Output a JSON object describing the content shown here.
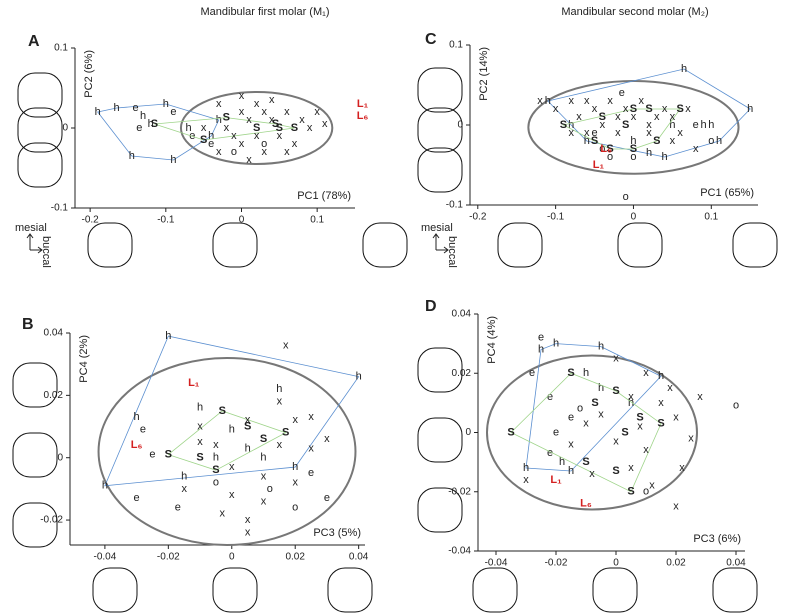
{
  "chart_data": [
    {
      "type": "scatter",
      "panel": "A",
      "title": "Mandibular first molar (M₁)",
      "xlabel": "PC1 (78%)",
      "ylabel": "PC2 (6%)",
      "xlim": [
        -0.22,
        0.15
      ],
      "ylim": [
        -0.1,
        0.1
      ],
      "xticks": [
        -0.2,
        -0.1,
        0,
        0.1
      ],
      "yticks": [
        -0.1,
        0,
        0.1
      ],
      "orientation": [
        "mesial",
        "buccal"
      ],
      "ellipse": {
        "center": [
          0.02,
          0
        ],
        "radii": [
          0.1,
          0.045
        ]
      },
      "series": [
        {
          "marker": "h",
          "color": "#1f3c88",
          "hull": "#5b8fd0",
          "x": [
            -0.19,
            -0.165,
            -0.13,
            -0.145,
            -0.1,
            -0.12,
            -0.07,
            -0.04,
            -0.03,
            -0.09
          ],
          "values": [
            0.02,
            0.025,
            0.015,
            -0.035,
            0.03,
            0.005,
            0.0,
            -0.01,
            0.01,
            -0.04
          ]
        },
        {
          "marker": "e",
          "color": "#1fa3d6",
          "x": [
            -0.14,
            -0.135,
            -0.09,
            -0.065,
            -0.04
          ],
          "values": [
            0.025,
            0.0,
            0.02,
            -0.01,
            -0.02
          ]
        },
        {
          "marker": "S",
          "color": "#3aa935",
          "hull": "#9fd48a",
          "x": [
            -0.115,
            -0.05,
            -0.02,
            0.02,
            0.05,
            0.07,
            0.045
          ],
          "values": [
            0.005,
            -0.015,
            0.013,
            0.0,
            0.0,
            0.0,
            0.005
          ]
        },
        {
          "marker": "x",
          "color": "#777777",
          "x": [
            -0.03,
            -0.02,
            -0.01,
            0.0,
            0.0,
            0.01,
            0.02,
            0.03,
            0.03,
            0.04,
            0.05,
            0.06,
            0.07,
            0.08,
            0.09,
            0.1,
            -0.05,
            0.0,
            0.02,
            0.06,
            -0.03,
            0.01,
            0.04,
            0.11
          ],
          "values": [
            0.03,
            0.0,
            -0.01,
            0.02,
            -0.02,
            0.01,
            -0.01,
            0.02,
            -0.03,
            0.01,
            -0.01,
            0.02,
            -0.02,
            0.01,
            0.0,
            0.02,
            0.0,
            0.04,
            0.03,
            -0.03,
            -0.03,
            -0.04,
            0.035,
            0.005
          ]
        },
        {
          "marker": "o",
          "color": "#777777",
          "x": [
            0.03,
            -0.01
          ],
          "values": [
            -0.02,
            -0.03
          ]
        }
      ],
      "annotations": [
        {
          "text": "L₁",
          "x": 0.16,
          "y": 0.03
        },
        {
          "text": "L₆",
          "x": 0.16,
          "y": 0.015
        }
      ]
    },
    {
      "type": "scatter",
      "panel": "C",
      "title": "Mandibular second molar (M₂)",
      "xlabel": "PC1 (65%)",
      "ylabel": "PC2 (14%)",
      "xlim": [
        -0.21,
        0.16
      ],
      "ylim": [
        -0.1,
        0.1
      ],
      "xticks": [
        -0.2,
        -0.1,
        0,
        0.1
      ],
      "yticks": [
        -0.1,
        0,
        0.1
      ],
      "orientation": [
        "mesial",
        "buccal"
      ],
      "ellipse": {
        "center": [
          0.0,
          -0.003
        ],
        "radii": [
          0.135,
          0.058
        ]
      },
      "series": [
        {
          "marker": "h",
          "color": "#1f3c88",
          "hull": "#5b8fd0",
          "x": [
            -0.11,
            0.065,
            0.15,
            0.11,
            0.09,
            0.04,
            0.02,
            0.0,
            -0.06,
            -0.08,
            0.1,
            0.05
          ],
          "values": [
            0.03,
            0.07,
            0.02,
            -0.02,
            0.0,
            -0.04,
            -0.035,
            -0.02,
            -0.02,
            0.0,
            0.0,
            0.0
          ]
        },
        {
          "marker": "e",
          "color": "#1fa3d6",
          "x": [
            -0.015,
            0.08,
            -0.05
          ],
          "values": [
            0.04,
            0.0,
            -0.01
          ]
        },
        {
          "marker": "S",
          "color": "#3aa935",
          "hull": "#9fd48a",
          "x": [
            -0.09,
            -0.04,
            0.0,
            0.02,
            0.06,
            -0.03,
            0.03,
            -0.01,
            -0.05,
            0.0
          ],
          "values": [
            0.0,
            0.01,
            0.02,
            0.02,
            0.02,
            -0.03,
            -0.02,
            0.0,
            -0.02,
            -0.03
          ]
        },
        {
          "marker": "x",
          "color": "#777777",
          "x": [
            -0.12,
            -0.1,
            -0.08,
            -0.07,
            -0.06,
            -0.05,
            -0.04,
            -0.03,
            -0.02,
            -0.01,
            0.0,
            0.01,
            0.02,
            0.03,
            0.04,
            0.05,
            0.06,
            0.07,
            0.08,
            -0.06,
            -0.02,
            0.02,
            0.05,
            -0.08
          ],
          "values": [
            0.03,
            0.02,
            0.03,
            0.01,
            0.03,
            0.02,
            0.0,
            0.03,
            0.01,
            0.02,
            0.01,
            0.03,
            0.0,
            0.01,
            0.02,
            0.01,
            -0.01,
            0.02,
            -0.03,
            -0.01,
            -0.01,
            -0.01,
            -0.02,
            -0.01
          ]
        },
        {
          "marker": "o",
          "color": "#777777",
          "x": [
            -0.03,
            0.0,
            0.1,
            -0.01,
            -0.04
          ],
          "values": [
            -0.04,
            -0.04,
            -0.02,
            -0.09,
            -0.03
          ]
        }
      ],
      "annotations": [
        {
          "text": "L₁",
          "x": -0.045,
          "y": -0.05
        },
        {
          "text": "L₆",
          "x": -0.035,
          "y": -0.03
        }
      ]
    },
    {
      "type": "scatter",
      "panel": "B",
      "xlabel": "PC3 (5%)",
      "ylabel": "PC4 (2%)",
      "xlim": [
        -0.051,
        0.042
      ],
      "ylim": [
        -0.028,
        0.04
      ],
      "xticks": [
        -0.04,
        -0.02,
        0,
        0.02,
        0.04
      ],
      "yticks": [
        -0.02,
        0,
        0.02,
        0.04
      ],
      "ellipse": {
        "center": [
          -0.0015,
          0.002
        ],
        "radii": [
          0.0405,
          0.03
        ]
      },
      "series": [
        {
          "marker": "h",
          "color": "#1f3c88",
          "hull": "#5b8fd0",
          "x": [
            -0.02,
            0.04,
            -0.03,
            -0.04,
            -0.01,
            0.0,
            0.005,
            0.01,
            -0.005,
            -0.015,
            0.02,
            0.015
          ],
          "values": [
            0.039,
            0.026,
            0.013,
            -0.009,
            0.016,
            0.009,
            0.003,
            0.0,
            0.0,
            -0.006,
            -0.003,
            0.022
          ]
        },
        {
          "marker": "e",
          "color": "#1fa3d6",
          "x": [
            -0.028,
            -0.025,
            -0.03,
            -0.017,
            0.03,
            0.025
          ],
          "values": [
            0.009,
            0.001,
            -0.013,
            -0.016,
            -0.013,
            -0.005
          ]
        },
        {
          "marker": "S",
          "color": "#3aa935",
          "hull": "#9fd48a",
          "x": [
            -0.003,
            -0.02,
            -0.01,
            0.005,
            -0.005,
            0.01,
            0.017
          ],
          "values": [
            0.015,
            0.001,
            0.0,
            0.01,
            -0.004,
            0.006,
            0.008
          ]
        },
        {
          "marker": "x",
          "color": "#777777",
          "x": [
            -0.01,
            -0.005,
            0.0,
            0.005,
            0.01,
            0.015,
            0.02,
            0.025,
            0.03,
            -0.015,
            0.0,
            0.01,
            0.02,
            0.005,
            -0.01,
            0.025,
            0.015,
            0.017,
            0.005,
            -0.003
          ],
          "values": [
            0.01,
            0.004,
            -0.003,
            0.012,
            -0.006,
            0.004,
            0.012,
            0.003,
            0.006,
            -0.01,
            -0.012,
            -0.014,
            -0.008,
            -0.02,
            0.005,
            0.013,
            0.018,
            0.036,
            -0.024,
            -0.018
          ]
        },
        {
          "marker": "o",
          "color": "#777777",
          "x": [
            0.012,
            0.02,
            -0.005
          ],
          "values": [
            -0.01,
            -0.016,
            -0.008
          ]
        }
      ],
      "annotations": [
        {
          "text": "L₁",
          "x": -0.012,
          "y": 0.024
        },
        {
          "text": "L₆",
          "x": -0.03,
          "y": 0.004
        }
      ]
    },
    {
      "type": "scatter",
      "panel": "D",
      "xlabel": "PC3 (6%)",
      "ylabel": "PC4 (4%)",
      "xlim": [
        -0.046,
        0.043
      ],
      "ylim": [
        -0.04,
        0.04
      ],
      "xticks": [
        -0.04,
        -0.02,
        0,
        0.02,
        0.04
      ],
      "yticks": [
        -0.04,
        -0.02,
        0,
        0.02,
        0.04
      ],
      "ellipse": {
        "center": [
          -0.008,
          0.0
        ],
        "radii": [
          0.035,
          0.026
        ]
      },
      "series": [
        {
          "marker": "h",
          "color": "#1f3c88",
          "hull": "#5b8fd0",
          "x": [
            -0.025,
            -0.02,
            -0.005,
            0.015,
            -0.03,
            -0.018,
            -0.01,
            -0.005,
            0.005,
            -0.015
          ],
          "values": [
            0.028,
            0.03,
            0.029,
            0.019,
            -0.012,
            -0.01,
            0.02,
            0.015,
            0.01,
            -0.013
          ]
        },
        {
          "marker": "e",
          "color": "#1fa3d6",
          "x": [
            -0.025,
            -0.028,
            -0.022,
            -0.02,
            -0.022,
            -0.015
          ],
          "values": [
            0.032,
            0.02,
            0.012,
            0.0,
            -0.007,
            0.005
          ]
        },
        {
          "marker": "S",
          "color": "#3aa935",
          "hull": "#9fd48a",
          "x": [
            -0.015,
            -0.007,
            0.0,
            0.008,
            0.003,
            -0.035,
            -0.01,
            0.0,
            0.005,
            0.015
          ],
          "values": [
            0.02,
            0.01,
            0.014,
            0.005,
            0.0,
            0.0,
            -0.01,
            -0.013,
            -0.02,
            0.003
          ]
        },
        {
          "marker": "x",
          "color": "#777777",
          "x": [
            -0.005,
            0.0,
            0.005,
            0.01,
            0.015,
            0.02,
            0.025,
            -0.01,
            -0.015,
            0.01,
            0.018,
            0.005,
            0.0,
            -0.03,
            0.022,
            0.012,
            0.028,
            -0.008,
            0.008,
            0.02
          ],
          "values": [
            0.006,
            -0.003,
            0.012,
            -0.006,
            0.01,
            0.005,
            -0.002,
            0.003,
            -0.004,
            0.02,
            0.015,
            -0.012,
            0.025,
            -0.016,
            -0.012,
            -0.018,
            0.012,
            -0.014,
            0.002,
            -0.025
          ]
        },
        {
          "marker": "o",
          "color": "#777777",
          "x": [
            0.04,
            0.01,
            -0.012
          ],
          "values": [
            0.009,
            -0.02,
            0.008
          ]
        }
      ],
      "annotations": [
        {
          "text": "L₁",
          "x": -0.02,
          "y": -0.016
        },
        {
          "text": "L₆",
          "x": -0.01,
          "y": -0.024
        }
      ]
    }
  ]
}
